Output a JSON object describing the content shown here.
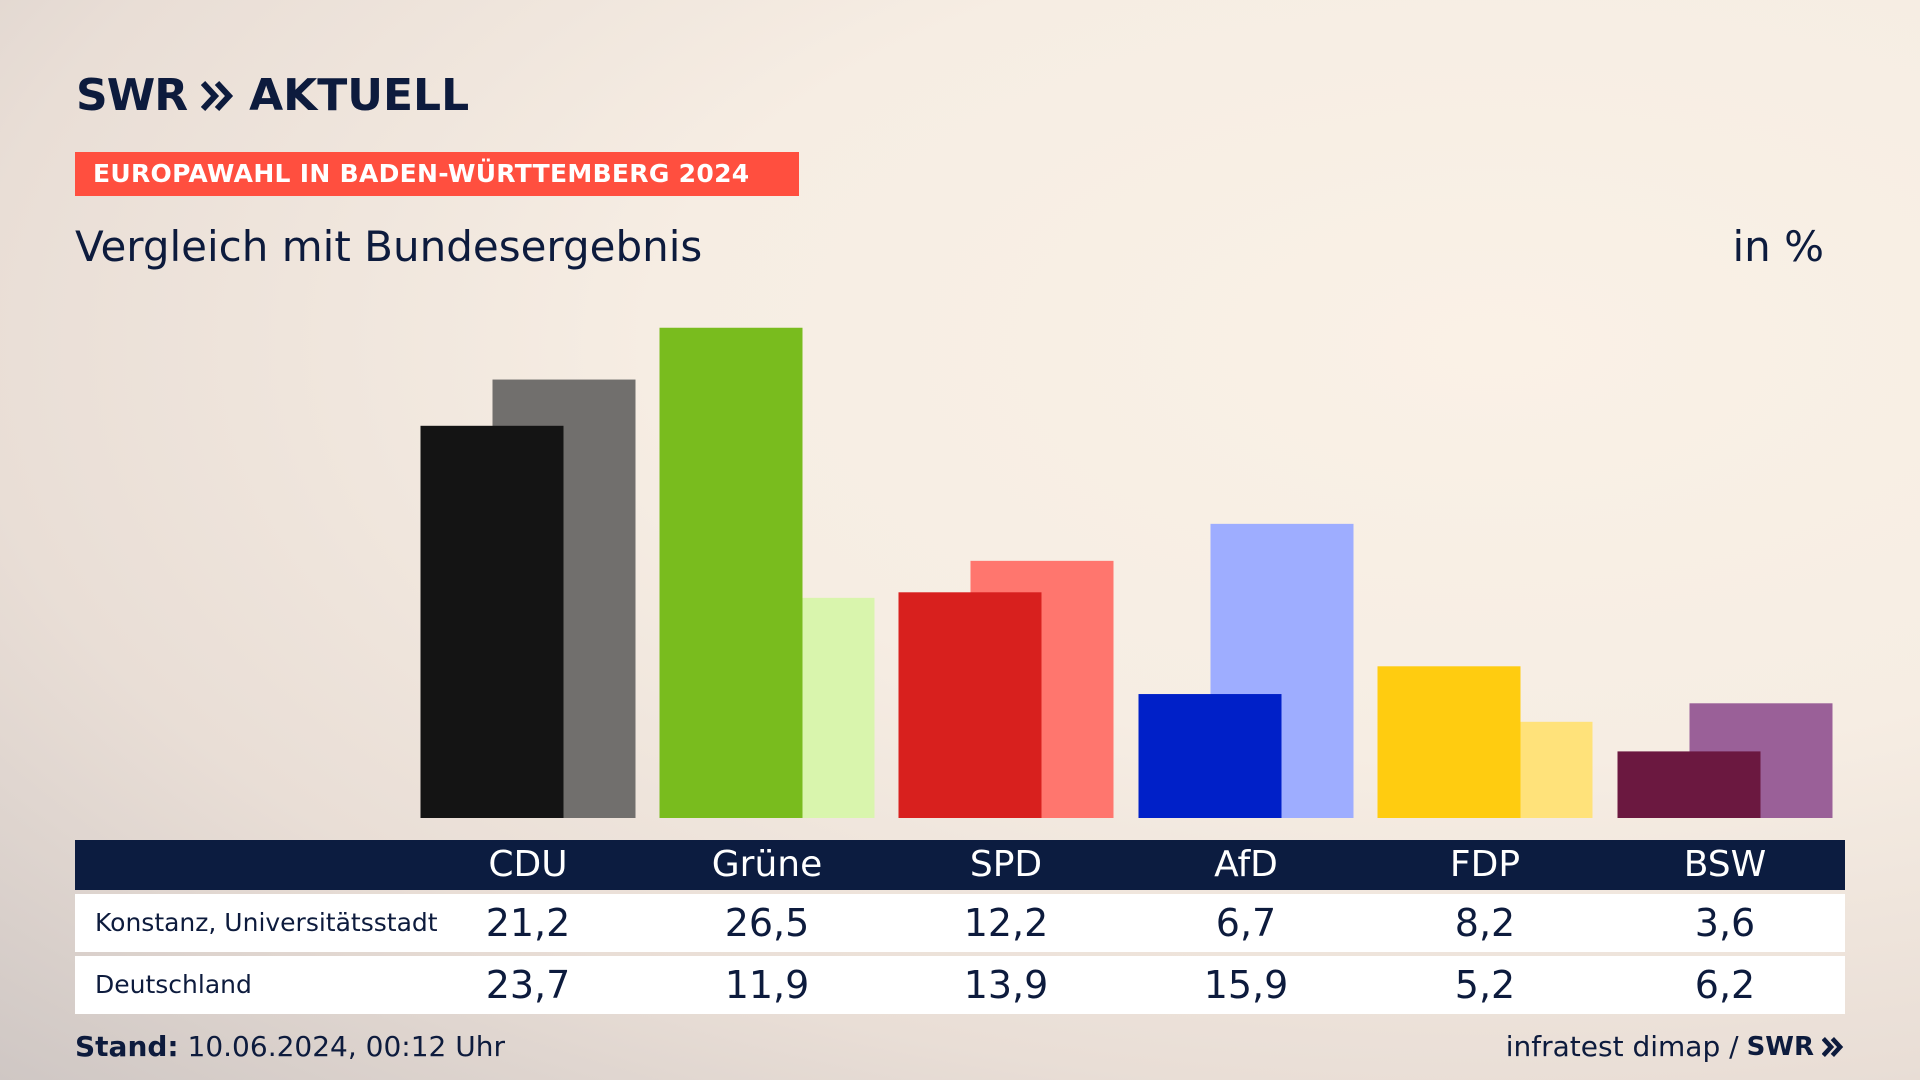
{
  "header": {
    "logo_swr": "SWR",
    "logo_aktuell": "AKTUELL",
    "banner": "EUROPAWAHL IN BADEN-WÜRTTEMBERG 2024",
    "subtitle": "Vergleich mit Bundesergebnis",
    "unit": "in %"
  },
  "table": {
    "row1_label": "Konstanz, Universitätsstadt",
    "row2_label": "Deutschland"
  },
  "footer": {
    "stand_label": "Stand:",
    "stand_value": "10.06.2024, 00:12 Uhr",
    "source": "infratest dimap /",
    "source_logo": "SWR"
  },
  "colors": {
    "banner": "#ff4f3f",
    "navy": "#0c1c40"
  },
  "chart_data": {
    "type": "bar",
    "categories": [
      "CDU",
      "Grüne",
      "SPD",
      "AfD",
      "FDP",
      "BSW"
    ],
    "series": [
      {
        "name": "Konstanz, Universitätsstadt",
        "values": [
          21.2,
          26.5,
          12.2,
          6.7,
          8.2,
          3.6
        ],
        "labels": [
          "21,2",
          "26,5",
          "12,2",
          "6,7",
          "8,2",
          "3,6"
        ],
        "colors": [
          "#141414",
          "#79bc1e",
          "#d8201e",
          "#0020c8",
          "#ffcc10",
          "#6b1840"
        ]
      },
      {
        "name": "Deutschland",
        "values": [
          23.7,
          11.9,
          13.9,
          15.9,
          5.2,
          6.2
        ],
        "labels": [
          "23,7",
          "11,9",
          "13,9",
          "15,9",
          "5,2",
          "6,2"
        ],
        "colors": [
          "#716f6d",
          "#d9f5ad",
          "#ff766e",
          "#9eadff",
          "#ffe27a",
          "#9a6098"
        ]
      }
    ],
    "ylim": [
      0,
      27
    ]
  }
}
